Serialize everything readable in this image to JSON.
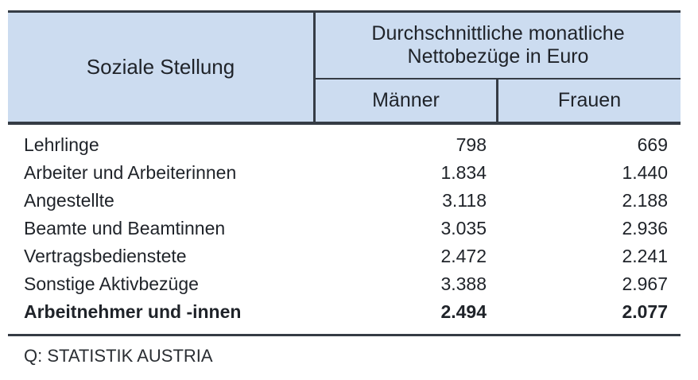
{
  "colors": {
    "header_background": "#ccdcf0",
    "rule_line": "#353c45",
    "text": "#1f2329",
    "page_background": "#ffffff"
  },
  "table": {
    "header": {
      "left": "Soziale Stellung",
      "group_line1": "Durchschnittliche monatliche",
      "group_line2": "Nettobezüge in Euro",
      "sub": [
        "Männer",
        "Frauen"
      ]
    },
    "rows": [
      {
        "label": "Lehrlinge",
        "maenner": "798",
        "frauen": "669"
      },
      {
        "label": "Arbeiter und Arbeiterinnen",
        "maenner": "1.834",
        "frauen": "1.440"
      },
      {
        "label": "Angestellte",
        "maenner": "3.118",
        "frauen": "2.188"
      },
      {
        "label": "Beamte und Beamtinnen",
        "maenner": "3.035",
        "frauen": "2.936"
      },
      {
        "label": "Vertragsbedienstete",
        "maenner": "2.472",
        "frauen": "2.241"
      },
      {
        "label": "Sonstige Aktivbezüge",
        "maenner": "3.388",
        "frauen": "2.967"
      },
      {
        "label": "Arbeitnehmer und -innen",
        "maenner": "2.494",
        "frauen": "2.077"
      }
    ],
    "source": "Q: STATISTIK AUSTRIA"
  },
  "chart_data": {
    "type": "table",
    "title": "Durchschnittliche monatliche Nettobezüge in Euro",
    "row_header": "Soziale Stellung",
    "categories": [
      "Lehrlinge",
      "Arbeiter und Arbeiterinnen",
      "Angestellte",
      "Beamte und Beamtinnen",
      "Vertragsbedienstete",
      "Sonstige Aktivbezüge",
      "Arbeitnehmer und -innen"
    ],
    "series": [
      {
        "name": "Männer",
        "values": [
          798,
          1834,
          3118,
          3035,
          2472,
          3388,
          2494
        ]
      },
      {
        "name": "Frauen",
        "values": [
          669,
          1440,
          2188,
          2936,
          2241,
          2967,
          2077
        ]
      }
    ],
    "units": "Euro pro Monat (netto)",
    "bold_row": "Arbeitnehmer und -innen",
    "source": "Q: STATISTIK AUSTRIA",
    "layout": {
      "grid": false,
      "legend_position": "column-headers"
    }
  }
}
